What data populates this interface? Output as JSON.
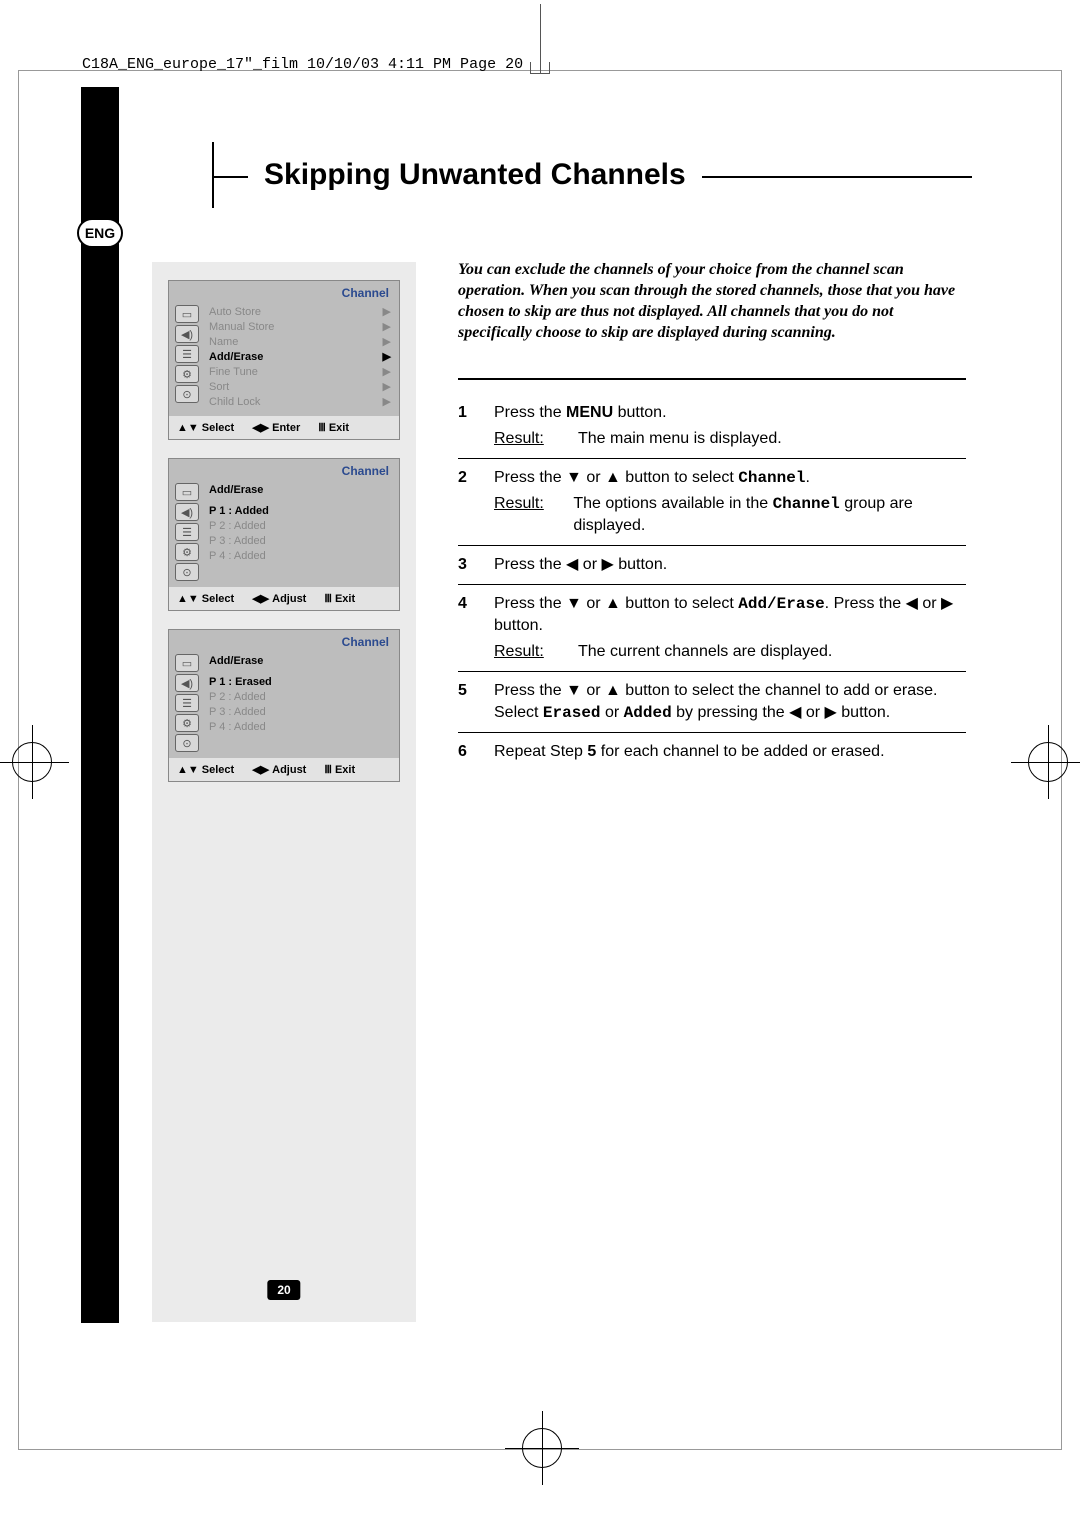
{
  "header_line": "C18A_ENG_europe_17\"_film  10/10/03  4:11 PM  Page 20",
  "lang_badge": "ENG",
  "title": "Skipping Unwanted Channels",
  "page_number": "20",
  "intro": "You can exclude the channels of your choice from the channel scan operation. When you scan through the stored channels, those that you have chosen to skip are thus not displayed. All channels that you do not specifically choose to skip are displayed during scanning.",
  "osd_title": "Channel",
  "osd1": {
    "items": [
      "Auto Store",
      "Manual Store",
      "Name",
      "Add/Erase",
      "Fine Tune",
      "Sort",
      "Child Lock"
    ],
    "selected_index": 3,
    "footer": [
      "Select",
      "Enter",
      "Exit"
    ]
  },
  "osd2": {
    "subtitle": "Add/Erase",
    "items": [
      "P  1 : Added",
      "P  2 : Added",
      "P  3 : Added",
      "P  4 : Added"
    ],
    "selected_index": 0,
    "footer": [
      "Select",
      "Adjust",
      "Exit"
    ]
  },
  "osd3": {
    "subtitle": "Add/Erase",
    "items": [
      "P  1 : Erased",
      "P  2 : Added",
      "P  3 : Added",
      "P  4 : Added"
    ],
    "selected_index": 0,
    "footer": [
      "Select",
      "Adjust",
      "Exit"
    ]
  },
  "steps": {
    "s1": {
      "num": "1",
      "line1a": "Press the ",
      "line1b": "MENU",
      "line1c": " button.",
      "result_label": "Result:",
      "result": "The main menu is displayed."
    },
    "s2": {
      "num": "2",
      "line1a": "Press the ",
      "line1b": " or ",
      "line1c": " button to select ",
      "mono": "Channel",
      "line1d": ".",
      "result_label": "Result:",
      "result_a": "The options available in the ",
      "result_mono": "Channel",
      "result_b": " group are displayed."
    },
    "s3": {
      "num": "3",
      "line1a": "Press the ",
      "line1b": " or ",
      "line1c": " button."
    },
    "s4": {
      "num": "4",
      "line1a": "Press the ",
      "line1b": " or ",
      "line1c": " button to select ",
      "mono": "Add/Erase",
      "line1d": ". Press the ",
      "line1e": " or ",
      "line1f": " button.",
      "result_label": "Result:",
      "result": "The current channels are displayed."
    },
    "s5": {
      "num": "5",
      "line1a": "Press the ",
      "line1b": " or ",
      "line1c": " button to select the channel to add or erase. Select ",
      "mono1": "Erased",
      "line1d": " or ",
      "mono2": "Added",
      "line1e": " by pressing the ",
      "line1f": " or ",
      "line1g": " button."
    },
    "s6": {
      "num": "6",
      "line1a": "Repeat Step ",
      "line1b": "5",
      "line1c": " for each channel to be added or erased."
    }
  },
  "symbols": {
    "up": "▲",
    "down": "▼",
    "left": "◀",
    "right": "▶",
    "updown": "◆",
    "leftright": "◀▶",
    "menu": "Ⅲ"
  }
}
